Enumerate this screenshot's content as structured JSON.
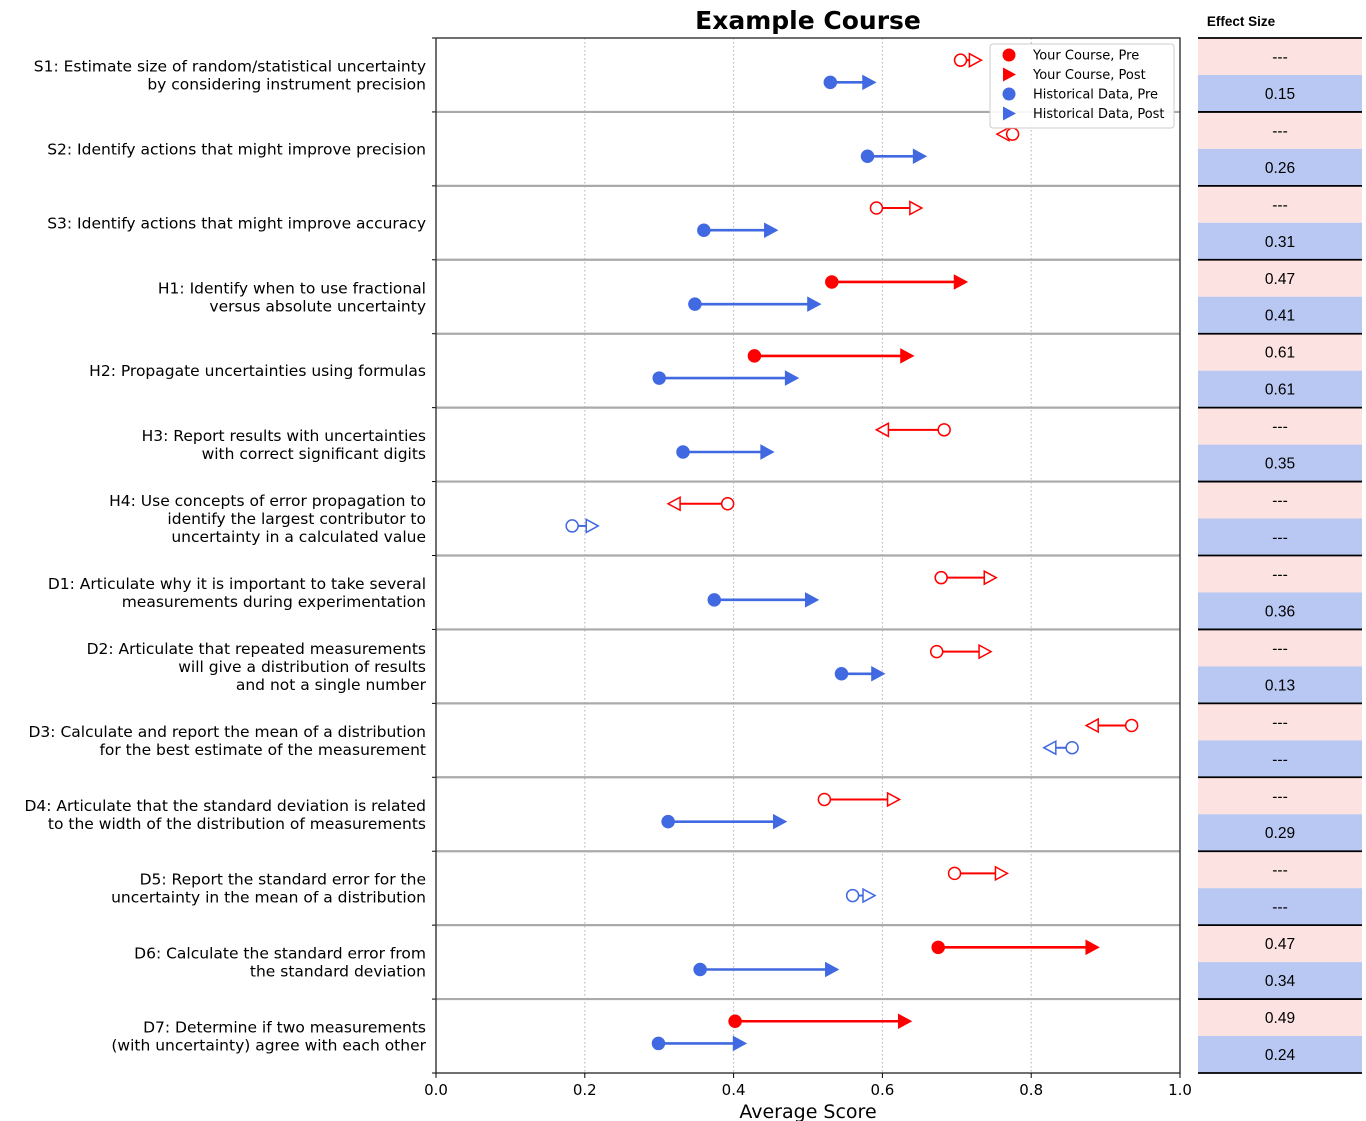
{
  "chart_data": {
    "type": "dumbbell",
    "title": "Example Course",
    "xlabel": "Average Score",
    "xlim": [
      0.0,
      1.0
    ],
    "xticks": [
      "0.0",
      "0.2",
      "0.4",
      "0.6",
      "0.8",
      "1.0"
    ],
    "grid": "vertical dotted",
    "legend": {
      "placement": "top-right",
      "entries": [
        "Your Course, Pre",
        "Your Course, Post",
        "Historical Data, Pre",
        "Historical Data, Post"
      ]
    },
    "effect_size_header": "Effect Size",
    "colors": {
      "course": "#ff0000",
      "historical": "#4169e1",
      "course_bg": "#fde2e2",
      "historical_bg": "#b9c8f2"
    },
    "items": [
      {
        "label": [
          "S1: Estimate size of random/statistical uncertainty",
          "by considering instrument precision"
        ],
        "course": {
          "pre": 0.705,
          "post": 0.725,
          "filled": false
        },
        "historical": {
          "pre": 0.53,
          "post": 0.582,
          "filled": true
        },
        "course_es": "---",
        "historical_es": "0.15"
      },
      {
        "label": [
          "S2: Identify actions that might improve precision"
        ],
        "course": {
          "pre": 0.775,
          "post": 0.762,
          "filled": false
        },
        "historical": {
          "pre": 0.58,
          "post": 0.65,
          "filled": true
        },
        "course_es": "---",
        "historical_es": "0.26"
      },
      {
        "label": [
          "S3: Identify actions that might improve accuracy"
        ],
        "course": {
          "pre": 0.592,
          "post": 0.645,
          "filled": false
        },
        "historical": {
          "pre": 0.36,
          "post": 0.45,
          "filled": true
        },
        "course_es": "---",
        "historical_es": "0.31"
      },
      {
        "label": [
          "H1: Identify when to use fractional",
          "versus absolute uncertainty"
        ],
        "course": {
          "pre": 0.532,
          "post": 0.705,
          "filled": true
        },
        "historical": {
          "pre": 0.348,
          "post": 0.508,
          "filled": true
        },
        "course_es": "0.47",
        "historical_es": "0.41"
      },
      {
        "label": [
          "H2: Propagate uncertainties using formulas"
        ],
        "course": {
          "pre": 0.428,
          "post": 0.633,
          "filled": true
        },
        "historical": {
          "pre": 0.3,
          "post": 0.478,
          "filled": true
        },
        "course_es": "0.61",
        "historical_es": "0.61"
      },
      {
        "label": [
          "H3: Report results with uncertainties",
          "with correct significant digits"
        ],
        "course": {
          "pre": 0.683,
          "post": 0.6,
          "filled": false
        },
        "historical": {
          "pre": 0.332,
          "post": 0.445,
          "filled": true
        },
        "course_es": "---",
        "historical_es": "0.35"
      },
      {
        "label": [
          "H4: Use concepts of error propagation to",
          "identify the largest contributor to",
          "uncertainty in a calculated value"
        ],
        "course": {
          "pre": 0.392,
          "post": 0.32,
          "filled": false
        },
        "historical": {
          "pre": 0.183,
          "post": 0.21,
          "filled": false
        },
        "course_es": "---",
        "historical_es": "---"
      },
      {
        "label": [
          "D1: Articulate why it is important to take several",
          "measurements during experimentation"
        ],
        "course": {
          "pre": 0.679,
          "post": 0.745,
          "filled": false
        },
        "historical": {
          "pre": 0.374,
          "post": 0.505,
          "filled": true
        },
        "course_es": "---",
        "historical_es": "0.36"
      },
      {
        "label": [
          "D2: Articulate that repeated measurements",
          "will give a distribution of results",
          "and not a single number"
        ],
        "course": {
          "pre": 0.673,
          "post": 0.738,
          "filled": false
        },
        "historical": {
          "pre": 0.545,
          "post": 0.594,
          "filled": true
        },
        "course_es": "---",
        "historical_es": "0.13"
      },
      {
        "label": [
          "D3: Calculate and report the mean of a distribution",
          "for the best estimate of the measurement"
        ],
        "course": {
          "pre": 0.935,
          "post": 0.882,
          "filled": false
        },
        "historical": {
          "pre": 0.855,
          "post": 0.825,
          "filled": false
        },
        "course_es": "---",
        "historical_es": "---"
      },
      {
        "label": [
          "D4: Articulate that the standard deviation is related",
          "to the width of the distribution of measurements"
        ],
        "course": {
          "pre": 0.522,
          "post": 0.615,
          "filled": false
        },
        "historical": {
          "pre": 0.312,
          "post": 0.462,
          "filled": true
        },
        "course_es": "---",
        "historical_es": "0.29"
      },
      {
        "label": [
          "D5: Report the standard error for the",
          "uncertainty in the mean of a distribution"
        ],
        "course": {
          "pre": 0.697,
          "post": 0.76,
          "filled": false
        },
        "historical": {
          "pre": 0.56,
          "post": 0.582,
          "filled": false
        },
        "course_es": "---",
        "historical_es": "---"
      },
      {
        "label": [
          "D6: Calculate the standard error from",
          "the standard deviation"
        ],
        "course": {
          "pre": 0.675,
          "post": 0.882,
          "filled": true
        },
        "historical": {
          "pre": 0.355,
          "post": 0.532,
          "filled": true
        },
        "course_es": "0.47",
        "historical_es": "0.34"
      },
      {
        "label": [
          "D7: Determine if two measurements",
          "(with uncertainty) agree with each other"
        ],
        "course": {
          "pre": 0.402,
          "post": 0.63,
          "filled": true
        },
        "historical": {
          "pre": 0.299,
          "post": 0.408,
          "filled": true
        },
        "course_es": "0.49",
        "historical_es": "0.24"
      }
    ]
  }
}
